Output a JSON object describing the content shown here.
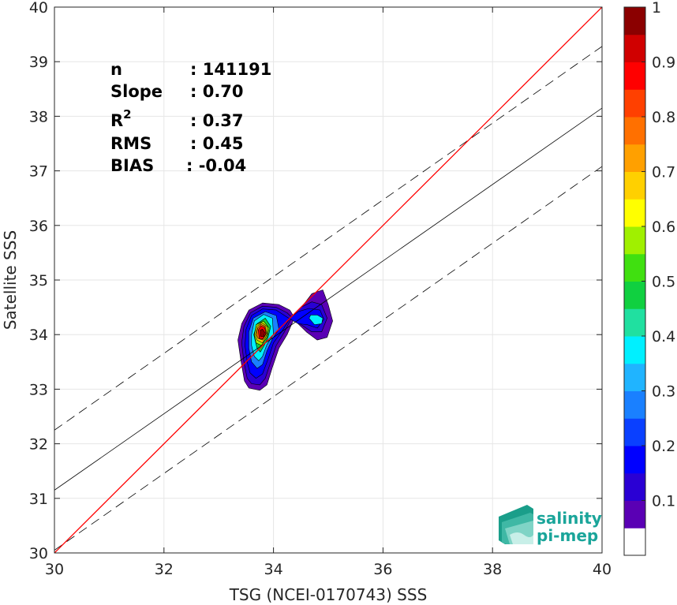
{
  "chart_data": {
    "type": "contour-scatter",
    "xlabel": "TSG (NCEI-0170743) SSS",
    "ylabel": "Satellite SSS",
    "xlim": [
      30,
      40
    ],
    "ylim": [
      30,
      40
    ],
    "xticks": [
      "30",
      "32",
      "34",
      "36",
      "38",
      "40"
    ],
    "yticks": [
      "30",
      "31",
      "32",
      "33",
      "34",
      "35",
      "36",
      "37",
      "38",
      "39",
      "40"
    ],
    "grid": true,
    "stats": [
      {
        "label": "n",
        "value": ": 141191"
      },
      {
        "label": "Slope",
        "value": ": 0.70"
      },
      {
        "label": "R",
        "sup": "2",
        "value": ": 0.37"
      },
      {
        "label": "RMS",
        "value": ": 0.45"
      },
      {
        "label": "BIAS",
        "value": ": -0.04"
      }
    ],
    "lines": {
      "one_to_one": {
        "color": "#ff0000",
        "from": [
          30,
          30
        ],
        "to": [
          40,
          40
        ]
      },
      "fit": {
        "color": "#000000",
        "from": [
          30,
          31.15
        ],
        "to": [
          40,
          38.15
        ]
      },
      "upper_dashed": {
        "color": "#000000",
        "from": [
          30,
          32.25
        ],
        "to": [
          40,
          39.28
        ]
      },
      "lower_dashed": {
        "color": "#000000",
        "from": [
          30,
          30.05
        ],
        "to": [
          40,
          37.08
        ]
      }
    },
    "density_peak": {
      "x": 33.8,
      "y": 34.0,
      "value": 1.0
    },
    "secondary_peak": {
      "x": 34.8,
      "y": 34.25,
      "value": 0.35
    },
    "colorbar": {
      "ticks": [
        "0.1",
        "0.2",
        "0.3",
        "0.4",
        "0.5",
        "0.6",
        "0.7",
        "0.8",
        "0.9",
        "1"
      ],
      "range": [
        0,
        1
      ],
      "colors": [
        "#ffffff",
        "#5a00b4",
        "#2a00d4",
        "#0000ff",
        "#0a40ff",
        "#1a80ff",
        "#20b4ff",
        "#00f0ff",
        "#20e0a0",
        "#10d040",
        "#40e010",
        "#a0f000",
        "#ffff00",
        "#ffd000",
        "#ffa000",
        "#ff7000",
        "#ff4000",
        "#ff0000",
        "#d00000",
        "#8b0000"
      ]
    }
  },
  "logo": {
    "line1": "salinity",
    "line2": "pi-mep"
  }
}
